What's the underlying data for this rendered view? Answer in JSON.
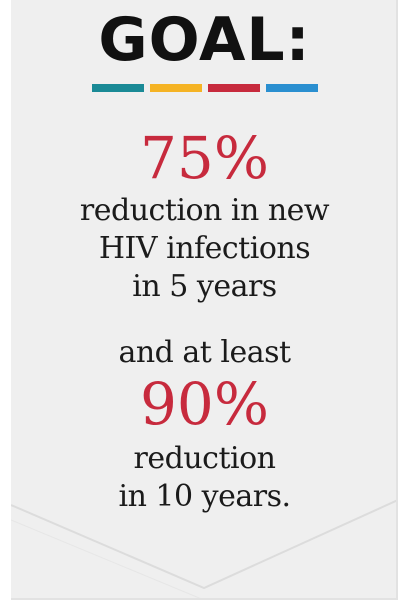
{
  "title": "GOAL:",
  "bars": [
    {
      "color": "#1a8a96"
    },
    {
      "color": "#f5b324"
    },
    {
      "color": "#c72a3d"
    },
    {
      "color": "#2a8fd0"
    }
  ],
  "accent_color": "#c72a3d",
  "first_goal": {
    "percent": "75%",
    "lines": [
      "reduction in new",
      "HIV infections",
      "in 5 years"
    ]
  },
  "connector": "and at least",
  "second_goal": {
    "percent": "90%",
    "lines": [
      "reduction",
      "in 10 years."
    ]
  }
}
